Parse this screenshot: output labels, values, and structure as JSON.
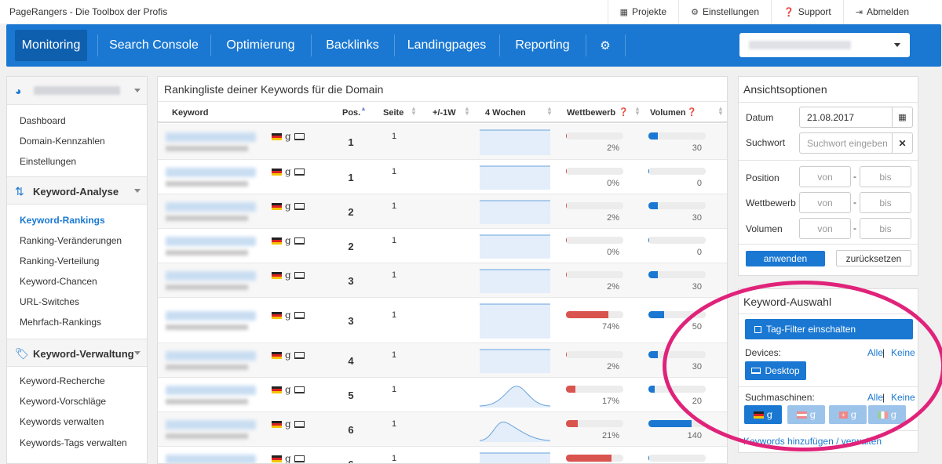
{
  "app_title": "PageRangers - Die Toolbox der Profis",
  "top_links": [
    {
      "icon": "grid-icon",
      "label": "Projekte"
    },
    {
      "icon": "gear-icon",
      "label": "Einstellungen"
    },
    {
      "icon": "question-icon",
      "label": "Support"
    },
    {
      "icon": "logout-icon",
      "label": "Abmelden"
    }
  ],
  "nav": {
    "items": [
      "Monitoring",
      "Search Console",
      "Optimierung",
      "Backlinks",
      "Landingpages",
      "Reporting"
    ],
    "active": "Monitoring",
    "settings_icon": "gear-icon"
  },
  "sidebar": {
    "domain_icon": "dashboard-gauge-icon",
    "sections": [
      {
        "title": "",
        "items": [
          "Dashboard",
          "Domain-Kennzahlen",
          "Einstellungen"
        ]
      },
      {
        "title": "Keyword-Analyse",
        "icon": "sort-icon",
        "items": [
          "Keyword-Rankings",
          "Ranking-Veränderungen",
          "Ranking-Verteilung",
          "Keyword-Chancen",
          "URL-Switches",
          "Mehrfach-Rankings"
        ],
        "active": "Keyword-Rankings"
      },
      {
        "title": "Keyword-Verwaltung",
        "icon": "tags-icon",
        "items": [
          "Keyword-Recherche",
          "Keyword-Vorschläge",
          "Keywords verwalten",
          "Keywords-Tags verwalten"
        ]
      }
    ]
  },
  "main": {
    "title": "Rankingliste deiner Keywords für die Domain",
    "columns": [
      "Keyword",
      "Pos.",
      "Seite",
      "+/-1W",
      "4 Wochen",
      "Wettbewerb",
      "Volumen"
    ],
    "rows": [
      {
        "pos": "1",
        "seite": "1",
        "wettbewerb": 2,
        "wettbewerb_label": "2%",
        "volumen": 30,
        "volumen_label": "30",
        "trend": "flat"
      },
      {
        "pos": "1",
        "seite": "1",
        "wettbewerb": 0,
        "wettbewerb_label": "0%",
        "volumen": 0,
        "volumen_label": "0",
        "trend": "flat"
      },
      {
        "pos": "2",
        "seite": "1",
        "wettbewerb": 2,
        "wettbewerb_label": "2%",
        "volumen": 30,
        "volumen_label": "30",
        "trend": "flat"
      },
      {
        "pos": "2",
        "seite": "1",
        "wettbewerb": 0,
        "wettbewerb_label": "0%",
        "volumen": 0,
        "volumen_label": "0",
        "trend": "flat"
      },
      {
        "pos": "3",
        "seite": "1",
        "wettbewerb": 2,
        "wettbewerb_label": "2%",
        "volumen": 30,
        "volumen_label": "30",
        "trend": "flat"
      },
      {
        "pos": "3",
        "seite": "1",
        "wettbewerb": 74,
        "wettbewerb_label": "74%",
        "volumen": 50,
        "volumen_label": "50",
        "trend": "flat"
      },
      {
        "pos": "4",
        "seite": "1",
        "wettbewerb": 2,
        "wettbewerb_label": "2%",
        "volumen": 30,
        "volumen_label": "30",
        "trend": "flat"
      },
      {
        "pos": "5",
        "seite": "1",
        "wettbewerb": 17,
        "wettbewerb_label": "17%",
        "volumen": 20,
        "volumen_label": "20",
        "trend": "bump"
      },
      {
        "pos": "6",
        "seite": "1",
        "wettbewerb": 21,
        "wettbewerb_label": "21%",
        "volumen": 140,
        "volumen_label": "140",
        "trend": "rise"
      },
      {
        "pos": "6",
        "seite": "1",
        "wettbewerb": 80,
        "wettbewerb_label": "",
        "volumen": 0,
        "volumen_label": "",
        "trend": "flat"
      }
    ]
  },
  "view_options": {
    "title": "Ansichtsoptionen",
    "datum_label": "Datum",
    "datum_value": "21.08.2017",
    "suchwort_label": "Suchwort",
    "suchwort_placeholder": "Suchwort eingeben",
    "position_label": "Position",
    "wettbewerb_label": "Wettbewerb",
    "volumen_label": "Volumen",
    "from_placeholder": "von",
    "to_placeholder": "bis",
    "apply_label": "anwenden",
    "reset_label": "zurücksetzen"
  },
  "keyword_selection": {
    "title": "Keyword-Auswahl",
    "tag_filter_label": "Tag-Filter einschalten",
    "devices_label": "Devices:",
    "all_label": "Alle",
    "none_label": "Keine",
    "device_button": "Desktop",
    "engines_label": "Suchmaschinen:",
    "engines": [
      "de",
      "at",
      "ch",
      "it"
    ],
    "manage_link": "Keywords hinzufügen / verwalten"
  },
  "colors": {
    "brand": "#1a78d2",
    "competition": "#d9534f",
    "highlight": "#e0237a"
  }
}
